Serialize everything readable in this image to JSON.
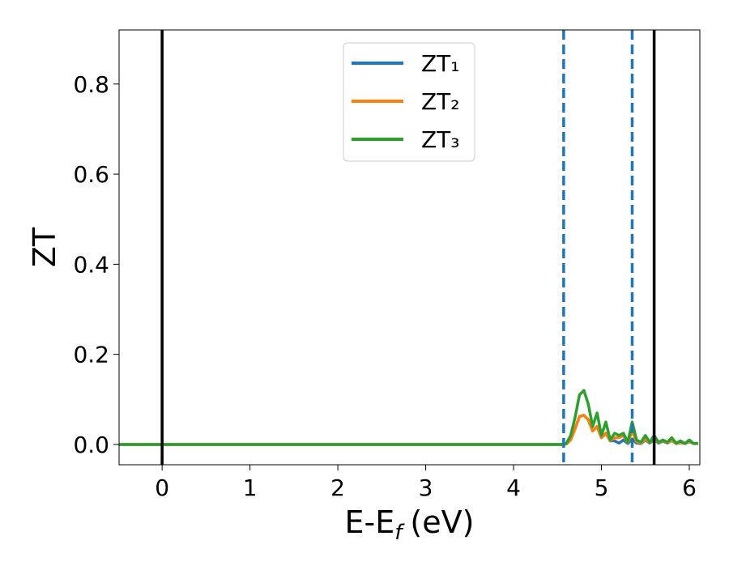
{
  "chart_data": {
    "type": "line",
    "y_label": "ZT",
    "x_label_parts": [
      "E-E",
      "f",
      "(eV)"
    ],
    "x": [
      -0.49,
      4.55,
      4.6,
      4.65,
      4.7,
      4.75,
      4.8,
      4.85,
      4.9,
      4.95,
      5.0,
      5.05,
      5.1,
      5.15,
      5.2,
      5.25,
      5.3,
      5.35,
      5.4,
      5.45,
      5.5,
      5.55,
      5.6,
      5.65,
      5.7,
      5.75,
      5.8,
      5.85,
      5.9,
      5.95,
      6.0,
      6.05,
      6.1
    ],
    "series": [
      {
        "name": "ZT₁",
        "color": "#1f77b4",
        "values": [
          0,
          0,
          0.001,
          0.01,
          0.035,
          0.062,
          0.065,
          0.055,
          0.03,
          0.04,
          0.015,
          0.025,
          0.008,
          0.008,
          0.003,
          0.01,
          0.002,
          0.012,
          0.003,
          0.002,
          0.01,
          0.003,
          0.012,
          0.003,
          0.007,
          0.003,
          0.009,
          0.002,
          0.004,
          0.002,
          0.006,
          0.002,
          0.002
        ]
      },
      {
        "name": "ZT₂",
        "color": "#ff7f0e",
        "values": [
          0,
          0,
          0.001,
          0.01,
          0.035,
          0.062,
          0.065,
          0.055,
          0.03,
          0.04,
          0.015,
          0.025,
          0.008,
          0.015,
          0.015,
          0.02,
          0.004,
          0.03,
          0.006,
          0.003,
          0.012,
          0.004,
          0.015,
          0.004,
          0.008,
          0.004,
          0.01,
          0.002,
          0.005,
          0.002,
          0.007,
          0.002,
          0.002
        ]
      },
      {
        "name": "ZT₃",
        "color": "#2ca02c",
        "values": [
          0,
          0,
          0.002,
          0.02,
          0.06,
          0.11,
          0.12,
          0.09,
          0.04,
          0.07,
          0.02,
          0.05,
          0.01,
          0.025,
          0.02,
          0.025,
          0.005,
          0.05,
          0.01,
          0.005,
          0.02,
          0.005,
          0.02,
          0.005,
          0.01,
          0.005,
          0.015,
          0.003,
          0.008,
          0.002,
          0.01,
          0.002,
          0.003
        ]
      }
    ],
    "vlines": [
      {
        "x": 0,
        "color": "#000000",
        "dashed": false
      },
      {
        "x": 4.57,
        "color": "#1f77b4",
        "dashed": true
      },
      {
        "x": 5.35,
        "color": "#1f77b4",
        "dashed": true
      },
      {
        "x": 5.6,
        "color": "#000000",
        "dashed": false
      }
    ],
    "xlim": [
      -0.49,
      6.12
    ],
    "ylim": [
      -0.045,
      0.92
    ],
    "xticks": [
      0,
      1,
      2,
      3,
      4,
      5,
      6
    ],
    "yticks": [
      {
        "value": 0,
        "label": "0.0"
      },
      {
        "value": 0.2,
        "label": "0.2"
      },
      {
        "value": 0.4,
        "label": "0.4"
      },
      {
        "value": 0.6,
        "label": "0.6"
      },
      {
        "value": 0.8,
        "label": "0.8"
      }
    ],
    "grid": false,
    "legend": "upper center"
  }
}
